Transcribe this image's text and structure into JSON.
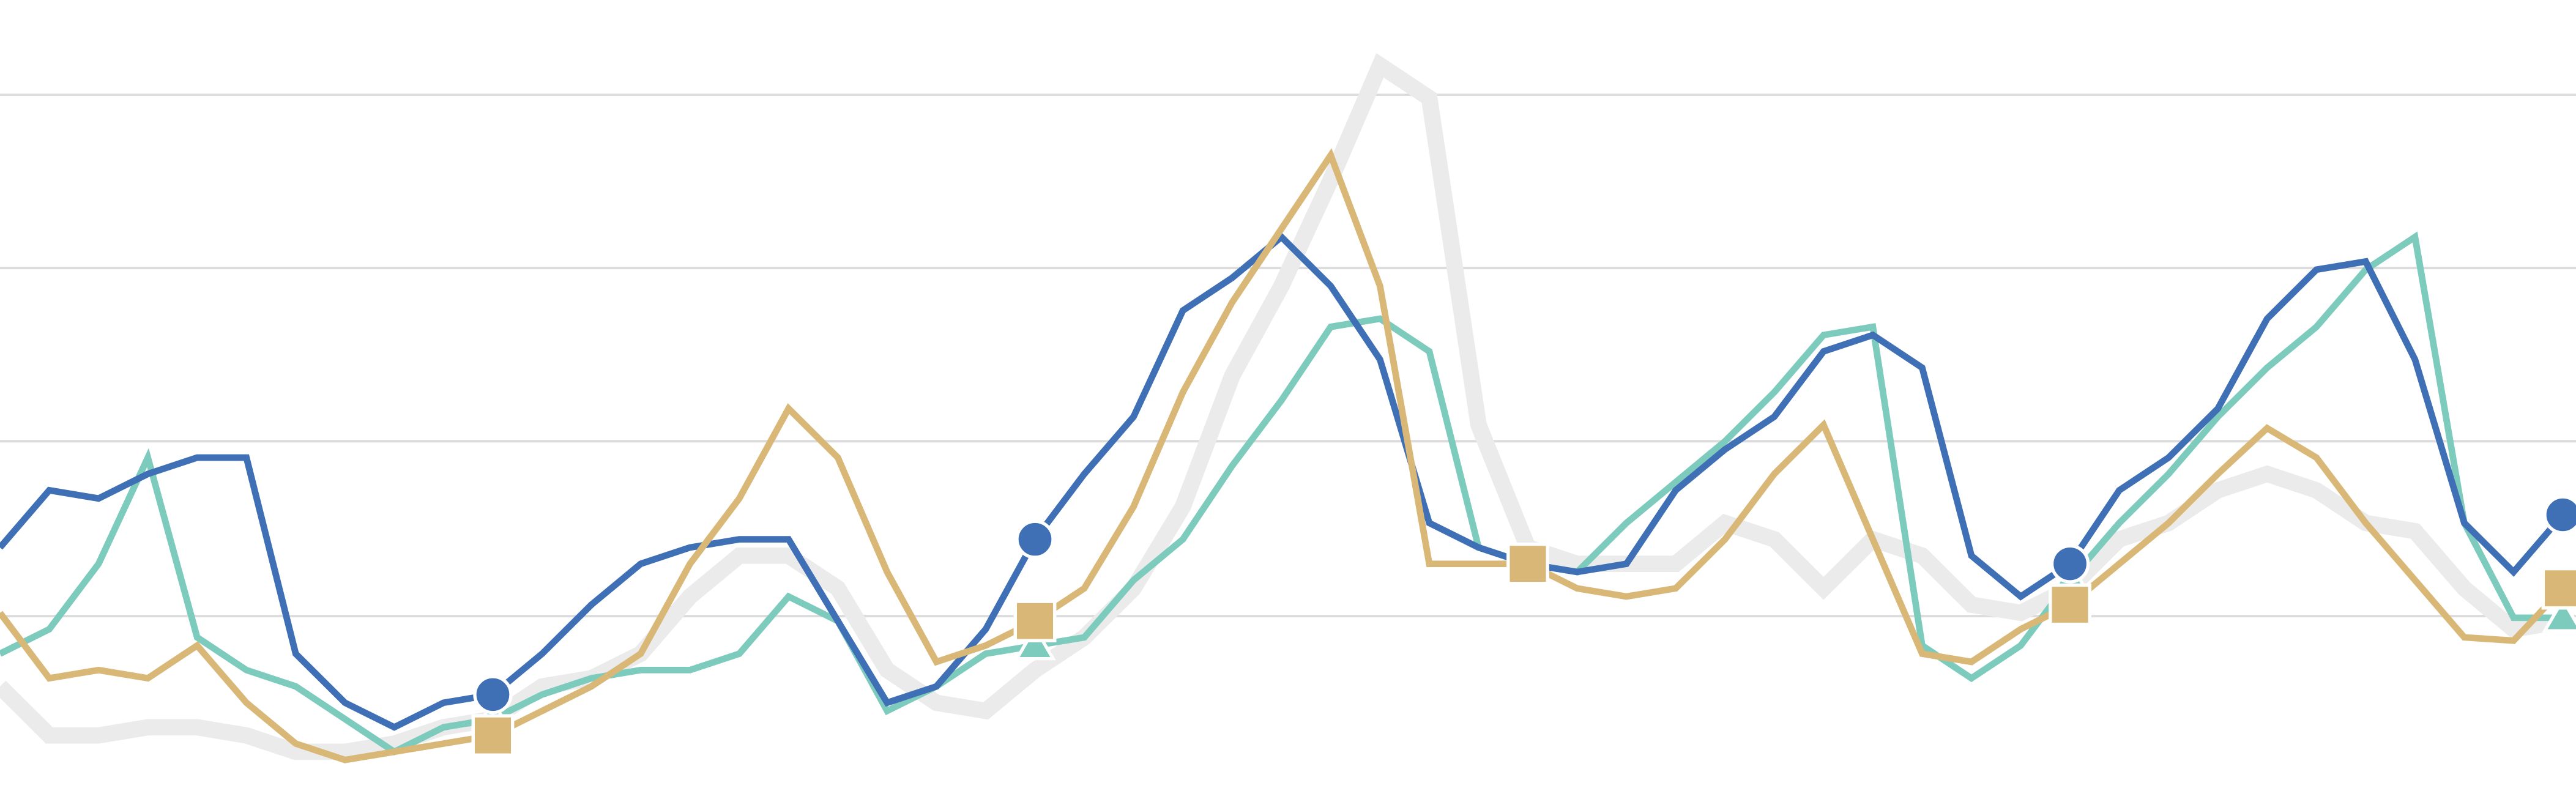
{
  "chart_data": {
    "type": "line",
    "x": [
      0,
      1,
      2,
      3,
      4,
      5,
      6,
      7,
      8,
      9,
      10,
      11,
      12,
      13,
      14,
      15,
      16,
      17,
      18,
      19,
      20,
      21,
      22,
      23,
      24,
      25,
      26,
      27,
      28,
      29,
      30,
      31,
      32,
      33,
      34,
      35,
      36,
      37,
      38,
      39,
      40,
      41,
      42,
      43,
      44,
      45,
      46,
      47,
      48,
      49,
      50,
      51,
      52
    ],
    "xlim": [
      0,
      52
    ],
    "ylim": [
      0,
      483
    ],
    "yticks": [
      106,
      213,
      319,
      425
    ],
    "grid": true,
    "marked_x": [
      10,
      21,
      31,
      42,
      52
    ],
    "series": [
      {
        "name": "gray",
        "color": "#ebebeb",
        "marker": "none",
        "values": [
          63,
          33,
          33,
          38,
          38,
          33,
          23,
          23,
          28,
          38,
          43,
          63,
          68,
          83,
          118,
          143,
          143,
          123,
          73,
          53,
          48,
          73,
          93,
          123,
          173,
          253,
          308,
          373,
          443,
          423,
          223,
          148,
          138,
          138,
          138,
          163,
          153,
          123,
          153,
          143,
          113,
          108,
          123,
          153,
          163,
          183,
          193,
          183,
          163,
          158,
          123,
          98,
          103
        ]
      },
      {
        "name": "teal",
        "color": "#7ccbbd",
        "marker": "triangle",
        "values": [
          83,
          98,
          138,
          203,
          93,
          73,
          63,
          43,
          23,
          38,
          43,
          58,
          68,
          73,
          73,
          83,
          118,
          103,
          48,
          63,
          83,
          88,
          93,
          128,
          153,
          198,
          238,
          283,
          288,
          268,
          148,
          138,
          133,
          163,
          188,
          213,
          243,
          278,
          283,
          88,
          68,
          88,
          128,
          163,
          193,
          228,
          258,
          283,
          318,
          338,
          163,
          105,
          105
        ]
      },
      {
        "name": "blue",
        "color": "#3f6fb5",
        "marker": "circle",
        "values": [
          148,
          183,
          178,
          193,
          203,
          203,
          83,
          53,
          38,
          53,
          58,
          83,
          113,
          138,
          148,
          153,
          153,
          103,
          53,
          63,
          98,
          153,
          193,
          228,
          293,
          313,
          338,
          308,
          263,
          163,
          148,
          138,
          133,
          138,
          183,
          208,
          228,
          268,
          278,
          258,
          143,
          118,
          138,
          183,
          203,
          233,
          288,
          318,
          323,
          263,
          163,
          133,
          168
        ]
      },
      {
        "name": "gold",
        "color": "#d9b877",
        "marker": "square",
        "values": [
          108,
          68,
          73,
          68,
          88,
          53,
          28,
          18,
          23,
          28,
          33,
          48,
          63,
          83,
          138,
          178,
          233,
          203,
          133,
          78,
          88,
          103,
          123,
          173,
          243,
          298,
          343,
          388,
          308,
          138,
          138,
          138,
          123,
          118,
          123,
          153,
          193,
          223,
          153,
          83,
          78,
          98,
          113,
          138,
          163,
          193,
          221,
          203,
          163,
          128,
          93,
          91,
          123
        ]
      }
    ]
  }
}
